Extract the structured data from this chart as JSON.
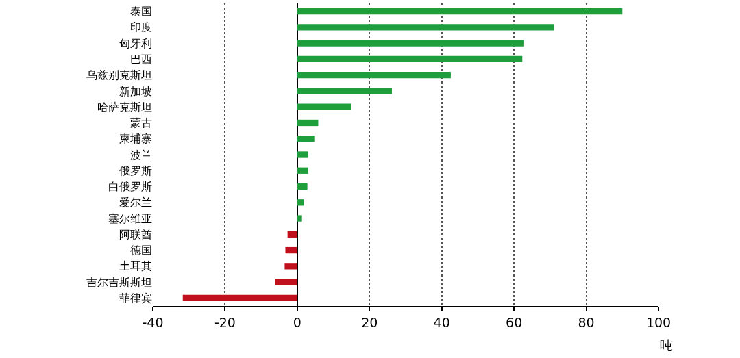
{
  "chart_data": {
    "type": "bar",
    "orientation": "horizontal",
    "xlabel": "吨",
    "categories": [
      "泰国",
      "印度",
      "匈牙利",
      "巴西",
      "乌兹别克斯坦",
      "新加坡",
      "哈萨克斯坦",
      "蒙古",
      "柬埔寨",
      "波兰",
      "俄罗斯",
      "白俄罗斯",
      "爱尔兰",
      "塞尔维亚",
      "阿联酋",
      "德国",
      "土耳其",
      "吉尔吉斯斯坦",
      "菲律宾"
    ],
    "values": [
      90,
      71,
      62.8,
      62.3,
      42.5,
      26.2,
      14.9,
      5.8,
      4.9,
      3.0,
      3.0,
      2.8,
      1.8,
      1.3,
      -2.7,
      -3.3,
      -3.5,
      -6.2,
      -31.7
    ],
    "colors": [
      "#1f9e3c",
      "#1f9e3c",
      "#1f9e3c",
      "#1f9e3c",
      "#1f9e3c",
      "#1f9e3c",
      "#1f9e3c",
      "#1f9e3c",
      "#1f9e3c",
      "#1f9e3c",
      "#1f9e3c",
      "#1f9e3c",
      "#1f9e3c",
      "#1f9e3c",
      "#c0101e",
      "#c0101e",
      "#c0101e",
      "#c0101e",
      "#c0101e"
    ],
    "xlim": [
      -40,
      100
    ],
    "xticks": [
      -40,
      -20,
      0,
      20,
      40,
      60,
      80,
      100
    ],
    "grid": "x"
  }
}
